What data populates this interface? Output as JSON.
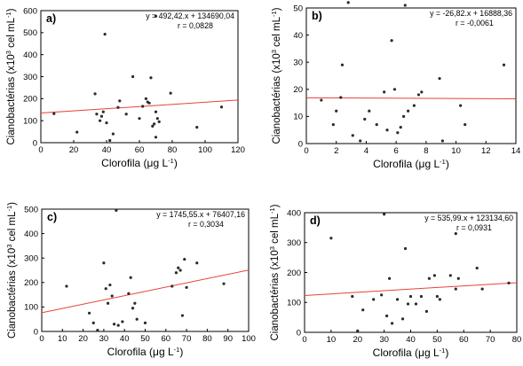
{
  "chart_data": [
    {
      "type": "scatter",
      "panel_label": "a)",
      "equation": "y = 492,42.x + 134690,04",
      "r": "r = 0,0828",
      "xlabel_text": "Clorofila (",
      "xlabel_unit_prefix": "μ",
      "xlabel_unit_rest": "g L",
      "xlabel_exp": "-1",
      "xlabel_close": ")",
      "ylabel_text": "Cianobactérias (x10",
      "ylabel_exp": "3",
      "ylabel_rest": " cel mL",
      "ylabel_exp2": "-1",
      "ylabel_close": ")",
      "xlim": [
        0,
        120
      ],
      "ylim": [
        0,
        600
      ],
      "xticks": [
        0,
        20,
        40,
        60,
        80,
        100,
        120
      ],
      "yticks": [
        0,
        100,
        200,
        300,
        400,
        500,
        600
      ],
      "fit": {
        "slope": 0.49242,
        "intercept": 134.69
      },
      "points": [
        [
          8,
          132
        ],
        [
          22,
          48
        ],
        [
          33,
          222
        ],
        [
          34,
          130
        ],
        [
          36,
          100
        ],
        [
          37,
          120
        ],
        [
          38,
          140
        ],
        [
          39,
          493
        ],
        [
          40,
          90
        ],
        [
          42,
          10
        ],
        [
          44,
          40
        ],
        [
          47,
          160
        ],
        [
          48,
          190
        ],
        [
          52,
          130
        ],
        [
          56,
          300
        ],
        [
          60,
          110
        ],
        [
          62,
          165
        ],
        [
          64,
          200
        ],
        [
          65,
          185
        ],
        [
          66,
          180
        ],
        [
          67,
          295
        ],
        [
          68,
          75
        ],
        [
          69,
          85
        ],
        [
          70,
          25
        ],
        [
          70,
          140
        ],
        [
          70,
          575
        ],
        [
          71,
          110
        ],
        [
          72,
          95
        ],
        [
          79,
          225
        ],
        [
          95,
          70
        ],
        [
          110,
          162
        ]
      ]
    },
    {
      "type": "scatter",
      "panel_label": "b)",
      "equation": "y = -26,82.x + 16888,36",
      "r": "r = -0,0061",
      "xlabel_text": "Clorofila (",
      "xlabel_unit_prefix": "μ",
      "xlabel_unit_rest": "g L",
      "xlabel_exp": "-1",
      "xlabel_close": ")",
      "ylabel_text": "Cianobactérias (x10",
      "ylabel_exp": "3",
      "ylabel_rest": " cel mL",
      "ylabel_exp2": "-1",
      "ylabel_close": ")",
      "xlim": [
        0,
        14
      ],
      "ylim": [
        0,
        50
      ],
      "xticks": [
        0,
        2,
        4,
        6,
        8,
        10,
        12,
        14
      ],
      "yticks": [
        0,
        10,
        20,
        30,
        40,
        50
      ],
      "fit": {
        "slope": -0.02682,
        "intercept": 16.888
      },
      "points": [
        [
          1,
          16
        ],
        [
          1.8,
          7
        ],
        [
          2,
          12
        ],
        [
          2.3,
          17
        ],
        [
          2.4,
          29
        ],
        [
          2.8,
          52
        ],
        [
          3.1,
          3
        ],
        [
          3.6,
          1
        ],
        [
          3.9,
          9
        ],
        [
          4.2,
          12
        ],
        [
          4.7,
          7
        ],
        [
          5.2,
          19
        ],
        [
          5.4,
          5
        ],
        [
          5.7,
          38
        ],
        [
          5.9,
          20
        ],
        [
          6.1,
          4
        ],
        [
          6.3,
          6
        ],
        [
          6.5,
          10
        ],
        [
          6.6,
          51
        ],
        [
          6.8,
          12
        ],
        [
          7.2,
          14
        ],
        [
          7.5,
          18
        ],
        [
          7.7,
          19
        ],
        [
          8.9,
          24
        ],
        [
          9.1,
          1
        ],
        [
          10.3,
          14
        ],
        [
          10.6,
          7
        ],
        [
          13.2,
          29
        ]
      ]
    },
    {
      "type": "scatter",
      "panel_label": "c)",
      "equation": "y = 1745,55.x + 76407,16",
      "r": "r = 0,3034",
      "xlabel_text": "Clorofila (",
      "xlabel_unit_prefix": "μ",
      "xlabel_unit_rest": "g L",
      "xlabel_exp": "-1",
      "xlabel_close": ")",
      "ylabel_text": "Cianobactérias (x10",
      "ylabel_exp": "3",
      "ylabel_rest": " cel mL",
      "ylabel_exp2": "-1",
      "ylabel_close": ")",
      "xlim": [
        0,
        100
      ],
      "ylim": [
        0,
        500
      ],
      "xticks": [
        0,
        10,
        20,
        30,
        40,
        50,
        60,
        70,
        80,
        90,
        100
      ],
      "yticks": [
        0,
        100,
        200,
        300,
        400,
        500
      ],
      "fit": {
        "slope": 1.74555,
        "intercept": 76.407
      },
      "points": [
        [
          12,
          185
        ],
        [
          23,
          75
        ],
        [
          25,
          35
        ],
        [
          27,
          5
        ],
        [
          30,
          280
        ],
        [
          31,
          175
        ],
        [
          32,
          115
        ],
        [
          33,
          190
        ],
        [
          34,
          145
        ],
        [
          35,
          30
        ],
        [
          36,
          495
        ],
        [
          37,
          25
        ],
        [
          39,
          40
        ],
        [
          42,
          155
        ],
        [
          43,
          220
        ],
        [
          44,
          95
        ],
        [
          45,
          115
        ],
        [
          46,
          50
        ],
        [
          50,
          35
        ],
        [
          63,
          185
        ],
        [
          65,
          240
        ],
        [
          66,
          260
        ],
        [
          67,
          250
        ],
        [
          68,
          65
        ],
        [
          69,
          295
        ],
        [
          70,
          180
        ],
        [
          75,
          280
        ],
        [
          88,
          195
        ]
      ]
    },
    {
      "type": "scatter",
      "panel_label": "d)",
      "equation": "y = 535,99.x + 123134,60",
      "r": "r = 0,0931",
      "xlabel_text": "Clorofila (",
      "xlabel_unit_prefix": "μ",
      "xlabel_unit_rest": "g L",
      "xlabel_exp": "-1",
      "xlabel_close": ")",
      "ylabel_text": "Cianobactérias (x10",
      "ylabel_exp": "3",
      "ylabel_rest": " cel mL",
      "ylabel_exp2": "-1",
      "ylabel_close": ")",
      "xlim": [
        0,
        80
      ],
      "ylim": [
        0,
        400
      ],
      "xticks": [
        0,
        10,
        20,
        30,
        40,
        50,
        60,
        70,
        80
      ],
      "yticks": [
        0,
        100,
        200,
        300,
        400
      ],
      "fit": {
        "slope": 0.53599,
        "intercept": 123.135
      },
      "points": [
        [
          10,
          315
        ],
        [
          18,
          120
        ],
        [
          20,
          5
        ],
        [
          22,
          75
        ],
        [
          26,
          110
        ],
        [
          29,
          125
        ],
        [
          30,
          395
        ],
        [
          31,
          55
        ],
        [
          32,
          180
        ],
        [
          33,
          30
        ],
        [
          35,
          110
        ],
        [
          37,
          45
        ],
        [
          38,
          280
        ],
        [
          39,
          95
        ],
        [
          40,
          120
        ],
        [
          42,
          95
        ],
        [
          44,
          120
        ],
        [
          46,
          70
        ],
        [
          47,
          180
        ],
        [
          49,
          190
        ],
        [
          50,
          120
        ],
        [
          51,
          110
        ],
        [
          55,
          190
        ],
        [
          57,
          145
        ],
        [
          57,
          330
        ],
        [
          58,
          180
        ],
        [
          65,
          215
        ],
        [
          67,
          145
        ],
        [
          77,
          165
        ]
      ]
    }
  ]
}
